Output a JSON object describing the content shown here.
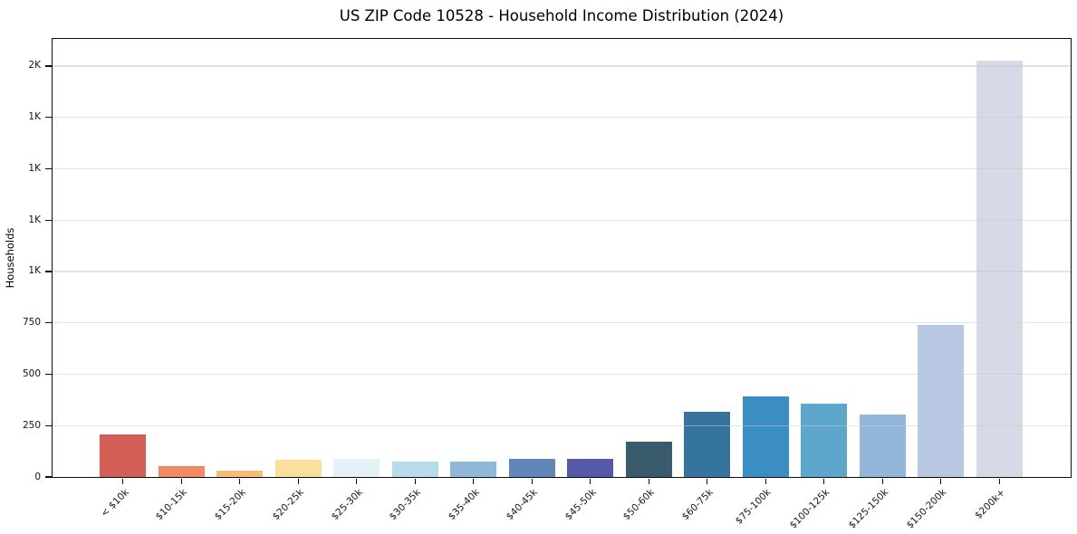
{
  "chart_data": {
    "type": "bar",
    "title": "US ZIP Code 10528 - Household Income Distribution (2024)",
    "xlabel": "",
    "ylabel": "Households",
    "ylim": [
      0,
      2132
    ],
    "grid": "horizontal",
    "legend": "none",
    "categories": [
      "< $10k",
      "$10-15k",
      "$15-20k",
      "$20-25k",
      "$25-30k",
      "$30-35k",
      "$35-40k",
      "$40-45k",
      "$45-50k",
      "$50-60k",
      "$60-75k",
      "$75-100k",
      "$100-125k",
      "$125-150k",
      "$150-200k",
      "$200k+"
    ],
    "values": [
      205,
      52,
      30,
      85,
      90,
      76,
      73,
      87,
      87,
      173,
      316,
      390,
      356,
      306,
      740,
      2025
    ],
    "bar_colors": [
      "#d45d56",
      "#f28a62",
      "#f8bd72",
      "#fbdf9d",
      "#e4f1f7",
      "#b8dbeb",
      "#8fb8d9",
      "#6187ba",
      "#5559a7",
      "#3a5a6e",
      "#35749c",
      "#3a8ec2",
      "#5ea7cc",
      "#92b7da",
      "#b8c8e2",
      "#d7d9e6"
    ],
    "y_ticks": [
      {
        "value": 0,
        "label": "0"
      },
      {
        "value": 250,
        "label": "250"
      },
      {
        "value": 500,
        "label": "500"
      },
      {
        "value": 750,
        "label": "750"
      },
      {
        "value": 1000,
        "label": "1K"
      },
      {
        "value": 1250,
        "label": "1K"
      },
      {
        "value": 1500,
        "label": "1K"
      },
      {
        "value": 1750,
        "label": "1K"
      },
      {
        "value": 2000,
        "label": "2K"
      }
    ]
  }
}
